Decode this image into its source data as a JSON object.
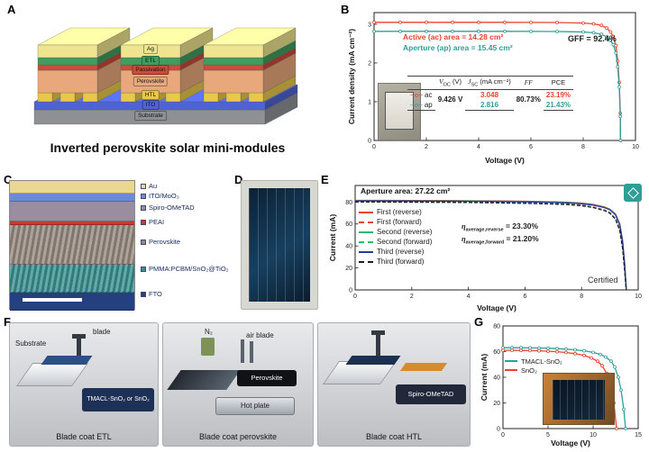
{
  "figure": {
    "panel_labels": {
      "A": "A",
      "B": "B",
      "C": "C",
      "D": "D",
      "E": "E",
      "F": "F",
      "G": "G"
    }
  },
  "panel_a": {
    "caption": "Inverted perovskite solar mini-modules",
    "layers": [
      {
        "name": "Ag",
        "color": "#efe48f"
      },
      {
        "name": "ETL",
        "color": "#3f9e5f"
      },
      {
        "name": "Passivation",
        "color": "#cc4b3b"
      },
      {
        "name": "Perovskite",
        "color": "#e8a87c"
      },
      {
        "name": "HTL",
        "color": "#e8c84a"
      },
      {
        "name": "ITO",
        "color": "#4f63d2"
      },
      {
        "name": "Substrate",
        "color": "#8f9094"
      }
    ]
  },
  "panel_c": {
    "labels": [
      {
        "text": "Au",
        "color": "#ead892"
      },
      {
        "text": "ITO/MoO₃",
        "color": "#6b8bd4"
      },
      {
        "text": "Spiro-OMeTAD",
        "color": "#9b8da0"
      },
      {
        "text": "PEAI",
        "color": "#c63b2f"
      },
      {
        "text": "Perovskite",
        "color": "#96897e"
      },
      {
        "text": "PMMA:PCBM/SnO₂@TiO₂",
        "color": "#3a8f8f"
      },
      {
        "text": "FTO",
        "color": "#24407e"
      }
    ]
  },
  "panel_f": {
    "steps": [
      {
        "caption": "Blade coat ETL",
        "labels": {
          "substrate": "Substrate",
          "blade": "blade",
          "box": "TMACL-SnO₂ or SnO₂"
        }
      },
      {
        "caption": "Blade coat perovskite",
        "labels": {
          "n2": "N₂",
          "airblade": "air blade",
          "box": "Perovskite",
          "hotplate": "Hot plate"
        }
      },
      {
        "caption": "Blade coat HTL",
        "labels": {
          "box": "Spiro-OMeTAD"
        }
      }
    ]
  },
  "chart_data": [
    {
      "panel": "B",
      "type": "line",
      "xlabel": "Voltage (V)",
      "ylabel": "Current density (mA cm⁻²)",
      "xlim": [
        0,
        10
      ],
      "ylim": [
        0,
        3.3
      ],
      "xticks": [
        0,
        2,
        4,
        6,
        8,
        10
      ],
      "yticks": [
        0,
        1,
        2,
        3
      ],
      "annotations": {
        "active": "Active (ac) area = 14.28 cm²",
        "aperture": "Aperture (ap) area = 15.45 cm²",
        "gff": "GFF = 92.4%"
      },
      "table": {
        "h_voc": {
          "sym": "V",
          "sub": "OC",
          "unit": " (V)"
        },
        "h_jsc": {
          "sym": "J",
          "sub": "SC",
          "unit": " (mA cm⁻²)"
        },
        "h_ff": "FF",
        "h_pce": "PCE",
        "voc": "9.426 V",
        "ff": "80.73%",
        "rows": [
          {
            "key": "ac",
            "marker": "─o─",
            "color": "#e8432d",
            "jsc": "3.048",
            "pce": "23.19%"
          },
          {
            "key": "ap",
            "marker": "─o─",
            "color": "#2f9e96",
            "jsc": "2.816",
            "pce": "21.43%"
          }
        ]
      },
      "series": [
        {
          "name": "ac",
          "color": "#e8432d",
          "marker": true,
          "x": [
            0,
            1,
            2,
            3,
            4,
            5,
            6,
            7,
            8,
            8.4,
            8.7,
            8.9,
            9.05,
            9.15,
            9.25,
            9.32,
            9.38,
            9.42,
            9.426
          ],
          "y": [
            3.048,
            3.048,
            3.048,
            3.048,
            3.048,
            3.048,
            3.047,
            3.045,
            3.03,
            3.01,
            2.97,
            2.9,
            2.8,
            2.68,
            2.45,
            2.05,
            1.5,
            0.7,
            0
          ]
        },
        {
          "name": "ap",
          "color": "#2f9e96",
          "marker": true,
          "x": [
            0,
            1,
            2,
            3,
            4,
            5,
            6,
            7,
            8,
            8.4,
            8.7,
            8.9,
            9.05,
            9.15,
            9.25,
            9.32,
            9.38,
            9.42,
            9.426
          ],
          "y": [
            2.816,
            2.816,
            2.816,
            2.816,
            2.816,
            2.816,
            2.815,
            2.812,
            2.8,
            2.78,
            2.74,
            2.67,
            2.58,
            2.47,
            2.26,
            1.9,
            1.38,
            0.62,
            0
          ]
        }
      ]
    },
    {
      "panel": "E",
      "type": "line",
      "xlabel": "Voltage (V)",
      "ylabel": "Current (mA)",
      "xlim": [
        0,
        10
      ],
      "ylim": [
        0,
        95
      ],
      "xticks": [
        0,
        2,
        4,
        6,
        8,
        10
      ],
      "yticks": [
        0,
        20,
        40,
        60,
        80
      ],
      "annotations": {
        "aperture": "Aperture area: 27.22 cm²",
        "certified": "Certified"
      },
      "eta_reverse": {
        "prefix": "η",
        "sub": "average,reverse",
        "value": " = 23.30%"
      },
      "eta_forward": {
        "prefix": "η",
        "sub": "average,forward",
        "value": " = 21.20%"
      },
      "legend": [
        {
          "label": "First (reverse)",
          "color": "#e8432d",
          "style": "solid"
        },
        {
          "label": "First (forward)",
          "color": "#e8432d",
          "style": "dashed"
        },
        {
          "label": "Second (reverse)",
          "color": "#2eb86e",
          "style": "solid"
        },
        {
          "label": "Second (forward)",
          "color": "#2eb86e",
          "style": "dashed"
        },
        {
          "label": "Third (reverse)",
          "color": "#2637a0",
          "style": "solid"
        },
        {
          "label": "Third (forward)",
          "color": "#1b1b2f",
          "style": "dashed"
        }
      ],
      "series": [
        {
          "name": "First (reverse)",
          "color": "#e8432d",
          "x": [
            0,
            1,
            2,
            3,
            4,
            5,
            6,
            7,
            7.5,
            8,
            8.4,
            8.8,
            9,
            9.2,
            9.35,
            9.45,
            9.52,
            9.58
          ],
          "y": [
            81.5,
            81.5,
            81.4,
            81.3,
            81.2,
            81,
            80.7,
            80.2,
            79.8,
            79,
            77.8,
            75.5,
            73.5,
            69,
            60,
            45,
            25,
            0
          ]
        },
        {
          "name": "First (forward)",
          "color": "#e8432d",
          "dash": "4 2",
          "x": [
            0,
            1,
            2,
            3,
            4,
            5,
            6,
            7,
            7.5,
            8,
            8.4,
            8.8,
            9,
            9.2,
            9.35,
            9.45,
            9.52,
            9.58
          ],
          "y": [
            80.5,
            80.5,
            80.4,
            80.3,
            80.1,
            79.8,
            79.4,
            78.7,
            78.2,
            77.2,
            75.6,
            72.8,
            70.4,
            65,
            55,
            39,
            20,
            0
          ]
        },
        {
          "name": "Second (reverse)",
          "color": "#2eb86e",
          "x": [
            0,
            1,
            2,
            3,
            4,
            5,
            6,
            7,
            7.5,
            8,
            8.4,
            8.8,
            9,
            9.2,
            9.35,
            9.45,
            9.52,
            9.58
          ],
          "y": [
            81.2,
            81.2,
            81.1,
            81,
            80.9,
            80.7,
            80.4,
            79.9,
            79.5,
            78.7,
            77.5,
            75.2,
            73.2,
            68.6,
            59.5,
            44.5,
            24.5,
            0
          ]
        },
        {
          "name": "Second (forward)",
          "color": "#2eb86e",
          "dash": "4 2",
          "x": [
            0,
            1,
            2,
            3,
            4,
            5,
            6,
            7,
            7.5,
            8,
            8.4,
            8.8,
            9,
            9.2,
            9.35,
            9.45,
            9.52,
            9.58
          ],
          "y": [
            80.2,
            80.2,
            80.1,
            80,
            79.8,
            79.5,
            79.1,
            78.4,
            77.9,
            76.9,
            75.3,
            72.5,
            70.1,
            64.6,
            54.5,
            38.5,
            19.5,
            0
          ]
        },
        {
          "name": "Third (reverse)",
          "color": "#2637a0",
          "x": [
            0,
            1,
            2,
            3,
            4,
            5,
            6,
            7,
            7.5,
            8,
            8.4,
            8.8,
            9,
            9.2,
            9.35,
            9.45,
            9.52,
            9.58
          ],
          "y": [
            80.9,
            80.9,
            80.8,
            80.7,
            80.6,
            80.4,
            80.1,
            79.6,
            79.2,
            78.4,
            77.2,
            74.9,
            72.9,
            68.2,
            59,
            44,
            24,
            0
          ]
        },
        {
          "name": "Third (forward)",
          "color": "#1b1b2f",
          "dash": "4 2",
          "x": [
            0,
            1,
            2,
            3,
            4,
            5,
            6,
            7,
            7.5,
            8,
            8.4,
            8.8,
            9,
            9.2,
            9.35,
            9.45,
            9.52,
            9.58
          ],
          "y": [
            79.9,
            79.9,
            79.8,
            79.7,
            79.5,
            79.2,
            78.8,
            78.1,
            77.6,
            76.6,
            75,
            72.2,
            69.8,
            64.2,
            54,
            38,
            19,
            0
          ]
        }
      ]
    },
    {
      "panel": "G",
      "type": "line",
      "xlabel": "Voltage (V)",
      "ylabel": "Current (mA)",
      "xlim": [
        0,
        15
      ],
      "ylim": [
        0,
        80
      ],
      "xticks": [
        0,
        5,
        10,
        15
      ],
      "yticks": [
        0,
        20,
        40,
        60,
        80
      ],
      "legend": [
        {
          "label": "TMACL-SnO₂",
          "color": "#2f9e96"
        },
        {
          "label": "SnO₂",
          "color": "#e8432d"
        }
      ],
      "series": [
        {
          "name": "TMACL-SnO₂",
          "color": "#2f9e96",
          "marker": true,
          "x": [
            0,
            1,
            2,
            3,
            4,
            5,
            6,
            7,
            8,
            9,
            10,
            10.8,
            11.4,
            12,
            12.4,
            12.8,
            13.1,
            13.4,
            13.6
          ],
          "y": [
            63,
            63,
            63,
            62.9,
            62.8,
            62.6,
            62.3,
            61.9,
            61.4,
            60.6,
            59.4,
            57.8,
            55.8,
            52.5,
            48,
            40,
            30,
            15,
            0
          ]
        },
        {
          "name": "SnO₂",
          "color": "#e8432d",
          "marker": true,
          "x": [
            0,
            1,
            2,
            3,
            4,
            5,
            6,
            7,
            8,
            9,
            9.8,
            10.5,
            11,
            11.5,
            11.9,
            12.3,
            12.6
          ],
          "y": [
            61,
            61,
            60.9,
            60.8,
            60.6,
            60.3,
            59.9,
            59.3,
            58.4,
            57,
            55,
            52.5,
            49,
            43,
            34,
            20,
            0
          ]
        }
      ]
    }
  ]
}
